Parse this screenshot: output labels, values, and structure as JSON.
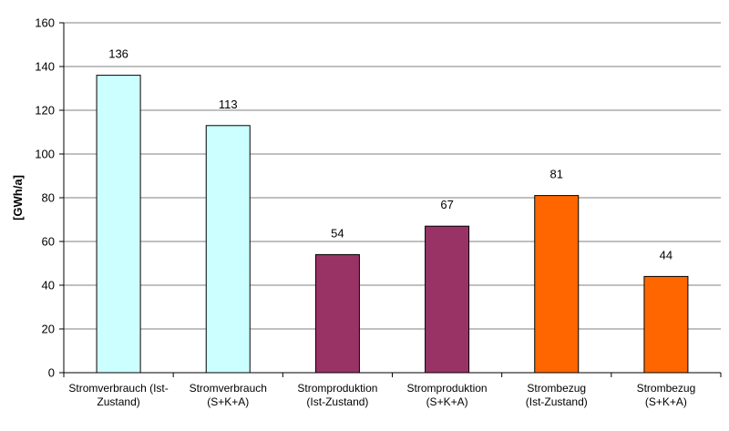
{
  "chart_data": {
    "type": "bar",
    "categories": [
      [
        "Stromverbrauch (Ist-",
        "Zustand)"
      ],
      [
        "Stromverbrauch",
        "(S+K+A)"
      ],
      [
        "Stromproduktion",
        "(Ist-Zustand)"
      ],
      [
        "Stromproduktion",
        "(S+K+A)"
      ],
      [
        "Strombezug",
        "(Ist-Zustand)"
      ],
      [
        "Strombezug",
        "(S+K+A)"
      ]
    ],
    "values": [
      136,
      113,
      54,
      67,
      81,
      44
    ],
    "data_labels": [
      "136",
      "113",
      "54",
      "67",
      "81",
      "44"
    ],
    "bar_colors": [
      "#ccffff",
      "#ccffff",
      "#993366",
      "#993366",
      "#ff6600",
      "#ff6600"
    ],
    "ylabel": "[GWh/a]",
    "ylim": [
      0,
      160
    ],
    "yticks": [
      0,
      20,
      40,
      60,
      80,
      100,
      120,
      140,
      160
    ],
    "grid": true,
    "legend": "none"
  }
}
